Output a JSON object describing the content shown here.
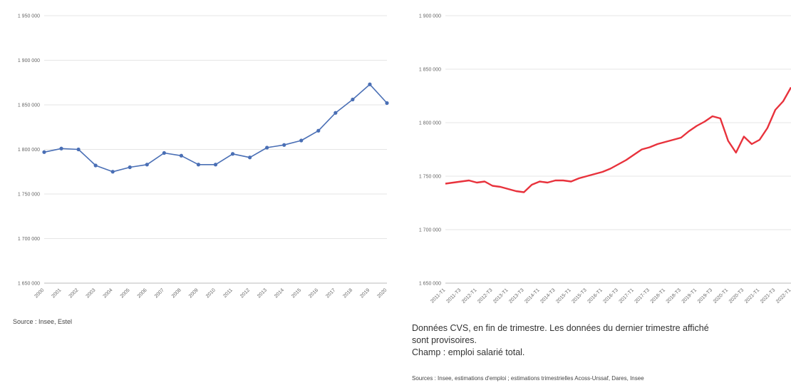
{
  "left": {
    "source": "Source : Insee, Estel",
    "chart_data": {
      "type": "line",
      "color": "#4a6fb5",
      "categories": [
        "2000",
        "2001",
        "2002",
        "2003",
        "2004",
        "2005",
        "2006",
        "2007",
        "2008",
        "2009",
        "2010",
        "2011",
        "2012",
        "2013",
        "2014",
        "2015",
        "2016",
        "2017",
        "2018",
        "2019",
        "2020"
      ],
      "y_tick_labels": [
        "1 650 000",
        "1 700 000",
        "1 750 000",
        "1 800 000",
        "1 850 000",
        "1 900 000",
        "1 950 000"
      ],
      "ylim": [
        1650000,
        1950000
      ],
      "values": [
        1797000,
        1801000,
        1800000,
        1782000,
        1775000,
        1780000,
        1783000,
        1796000,
        1793000,
        1783000,
        1783000,
        1795000,
        1791000,
        1802000,
        1805000,
        1810000,
        1821000,
        1841000,
        1856000,
        1873000,
        1852000
      ]
    }
  },
  "right": {
    "note_lines": [
      "Données CVS, en fin de trimestre. Les données du dernier trimestre affiché",
      "sont provisoires.",
      "Champ : emploi salarié total."
    ],
    "source": "Sources : Insee, estimations d'emploi ; estimations trimestrielles Acoss-Urssaf, Dares, Insee",
    "chart_data": {
      "type": "line",
      "color": "#e8323c",
      "x_tick_labels": [
        "2011-T1",
        "2011-T3",
        "2012-T1",
        "2012-T3",
        "2013-T1",
        "2013-T3",
        "2014-T1",
        "2014-T3",
        "2015-T1",
        "2015-T3",
        "2016-T1",
        "2016-T3",
        "2017-T1",
        "2017-T3",
        "2018-T1",
        "2018-T3",
        "2019-T1",
        "2019-T3",
        "2020-T1",
        "2020-T3",
        "2021-T1",
        "2021-T3",
        "2022-T1"
      ],
      "y_tick_labels": [
        "1 650 000",
        "1 700 000",
        "1 750 000",
        "1 800 000",
        "1 850 000",
        "1 900 000"
      ],
      "ylim": [
        1650000,
        1900000
      ],
      "values": [
        1743000,
        1744000,
        1745000,
        1746000,
        1744000,
        1745000,
        1741000,
        1740000,
        1738000,
        1736000,
        1735000,
        1742000,
        1745000,
        1744000,
        1746000,
        1746000,
        1745000,
        1748000,
        1750000,
        1752000,
        1754000,
        1757000,
        1761000,
        1765000,
        1770000,
        1775000,
        1777000,
        1780000,
        1782000,
        1784000,
        1786000,
        1792000,
        1797000,
        1801000,
        1806000,
        1804000,
        1783000,
        1772000,
        1787000,
        1780000,
        1784000,
        1795000,
        1812000,
        1820000,
        1833000
      ]
    }
  }
}
